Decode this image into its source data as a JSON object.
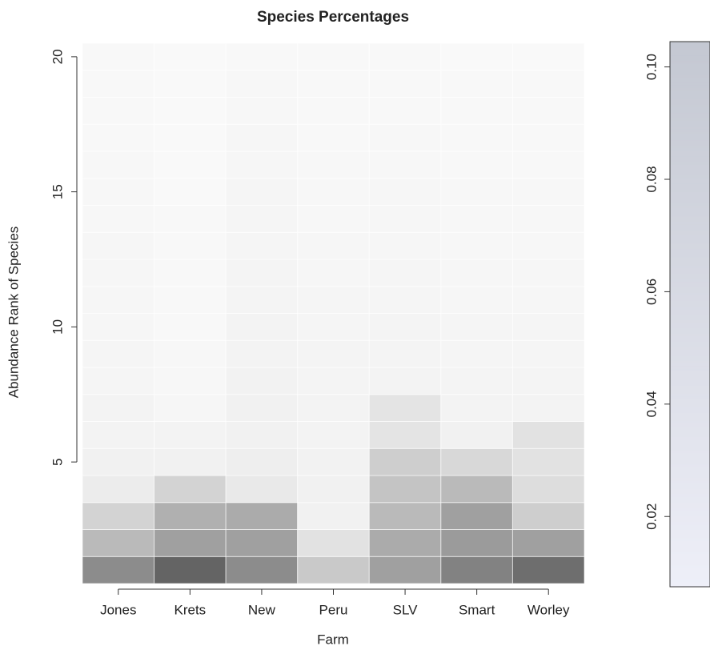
{
  "chart_data": {
    "type": "heatmap",
    "title": "Species Percentages",
    "xlabel": "Farm",
    "ylabel": "Abundance Rank of Species",
    "categories": [
      "Jones",
      "Krets",
      "New",
      "Peru",
      "SLV",
      "Smart",
      "Worley"
    ],
    "ylim": [
      0.5,
      20.5
    ],
    "yticks": [
      5,
      10,
      15,
      20
    ],
    "colors": [
      "#fbfbfb",
      "#555555"
    ],
    "zlim": [
      0,
      0.33
    ],
    "values": [
      [
        0.22,
        0.13,
        0.08,
        0.03,
        0.02,
        0.015,
        0.015,
        0.012,
        0.011,
        0.01,
        0.01,
        0.009,
        0.009,
        0.008,
        0.007,
        0.007,
        0.006,
        0.006,
        0.005,
        0.005
      ],
      [
        0.3,
        0.18,
        0.15,
        0.08,
        0.02,
        0.015,
        0.01,
        0.008,
        0.007,
        0.006,
        0.006,
        0.005,
        0.005,
        0.005,
        0.004,
        0.004,
        0.004,
        0.003,
        0.003,
        0.003
      ],
      [
        0.22,
        0.18,
        0.16,
        0.035,
        0.025,
        0.02,
        0.02,
        0.018,
        0.016,
        0.015,
        0.014,
        0.013,
        0.012,
        0.012,
        0.011,
        0.01,
        0.009,
        0.008,
        0.007,
        0.006
      ],
      [
        0.1,
        0.05,
        0.02,
        0.02,
        0.018,
        0.016,
        0.015,
        0.014,
        0.013,
        0.012,
        0.011,
        0.01,
        0.009,
        0.008,
        0.008,
        0.007,
        0.006,
        0.006,
        0.005,
        0.005
      ],
      [
        0.18,
        0.16,
        0.13,
        0.11,
        0.09,
        0.045,
        0.045,
        0.015,
        0.014,
        0.013,
        0.012,
        0.011,
        0.01,
        0.01,
        0.009,
        0.008,
        0.007,
        0.006,
        0.005,
        0.005
      ],
      [
        0.24,
        0.19,
        0.18,
        0.13,
        0.07,
        0.02,
        0.015,
        0.013,
        0.012,
        0.011,
        0.01,
        0.009,
        0.008,
        0.008,
        0.007,
        0.006,
        0.006,
        0.005,
        0.005,
        0.004
      ],
      [
        0.28,
        0.18,
        0.09,
        0.06,
        0.05,
        0.05,
        0.015,
        0.013,
        0.012,
        0.011,
        0.01,
        0.009,
        0.008,
        0.008,
        0.007,
        0.006,
        0.006,
        0.005,
        0.005,
        0.004
      ]
    ],
    "colorbar": {
      "colors": [
        "#eeeff8",
        "#c4c8d2"
      ],
      "zlim": [
        0.0075,
        0.1045
      ],
      "ticks": [
        {
          "value": 0.02,
          "label": "0.02"
        },
        {
          "value": 0.04,
          "label": "0.04"
        },
        {
          "value": 0.06,
          "label": "0.06"
        },
        {
          "value": 0.08,
          "label": "0.08"
        },
        {
          "value": 0.1,
          "label": "0.10"
        }
      ]
    }
  }
}
